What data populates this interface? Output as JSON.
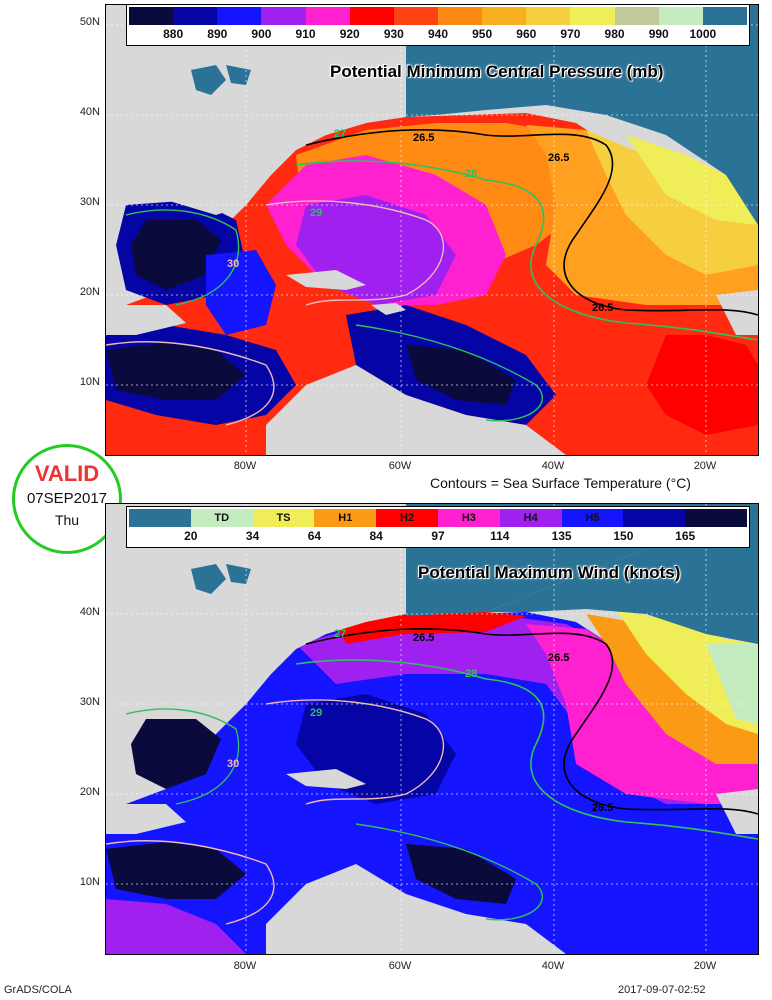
{
  "panel_pressure": {
    "title": "Potential Minimum Central Pressure (mb)",
    "legend_ticks": [
      "880",
      "890",
      "900",
      "910",
      "920",
      "930",
      "940",
      "950",
      "960",
      "970",
      "980",
      "990",
      "1000"
    ],
    "legend_colors": [
      "#0a0a3c",
      "#0505a6",
      "#1414ff",
      "#a020f0",
      "#ff20d0",
      "#ff0000",
      "#ff4414",
      "#fb8a14",
      "#f8b020",
      "#f5cf40",
      "#f0ee58",
      "#bfc99a",
      "#c5ebc0",
      "#2a7296"
    ]
  },
  "panel_wind": {
    "title": "Potential Maximum Wind (knots)",
    "legend_categories": [
      "",
      "TD",
      "TS",
      "H1",
      "H2",
      "H3",
      "H4",
      "H5",
      "",
      ""
    ],
    "legend_ticks": [
      "20",
      "34",
      "64",
      "84",
      "97",
      "114",
      "135",
      "150",
      "165"
    ],
    "legend_colors": [
      "#2a7296",
      "#c5ebc0",
      "#f0ee58",
      "#fb9a14",
      "#ff0000",
      "#ff20d0",
      "#a020f0",
      "#1414ff",
      "#0505a6",
      "#0a0a3c"
    ]
  },
  "axes": {
    "lat_labels_top": [
      "50N",
      "40N",
      "30N",
      "20N",
      "10N"
    ],
    "lat_labels_bottom": [
      "40N",
      "30N",
      "20N",
      "10N"
    ],
    "lon_labels": [
      "80W",
      "60W",
      "40W",
      "20W"
    ]
  },
  "contour_labels": {
    "sst_black": [
      "26.5",
      "26.5",
      "26.5"
    ],
    "sst_green": [
      "27",
      "28",
      "29",
      "30"
    ]
  },
  "sst_caption": "Contours = Sea Surface Temperature (°C)",
  "valid_badge": {
    "label": "VALID",
    "date": "07SEP2017",
    "weekday": "Thu"
  },
  "footer": {
    "credit": "GrADS/COLA",
    "timestamp": "2017-09-07-02:52"
  }
}
